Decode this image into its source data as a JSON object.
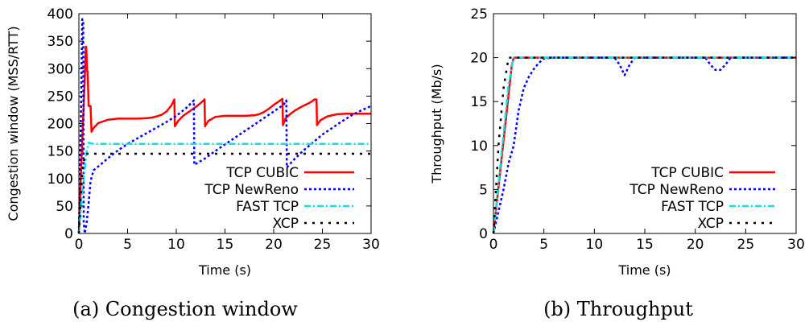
{
  "colors": {
    "cubic": "#ff0000",
    "newreno": "#0000ff",
    "fast": "#00e5ee",
    "xcp": "#000000"
  },
  "chart_data": [
    {
      "type": "line",
      "caption": "(a) Congestion window",
      "xlabel": "Time (s)",
      "ylabel": "Congestion window (MSS/RTT)",
      "xlim": [
        0,
        30
      ],
      "ylim": [
        0,
        400
      ],
      "xticks": [
        0,
        5,
        10,
        15,
        20,
        25,
        30
      ],
      "yticks": [
        0,
        50,
        100,
        150,
        200,
        250,
        300,
        350,
        400
      ],
      "legend_position": "right",
      "series": [
        {
          "name": "TCP CUBIC",
          "color_key": "cubic",
          "dash": "solid",
          "x": [
            0,
            0.3,
            0.6,
            0.7,
            0.75,
            0.85,
            0.9,
            1.0,
            1.1,
            1.2,
            1.3,
            1.5,
            2,
            3,
            4,
            5,
            6,
            7,
            7.5,
            8,
            8.5,
            9,
            9.5,
            9.8,
            9.85,
            10.2,
            10.7,
            11.5,
            12.2,
            12.6,
            12.9,
            12.95,
            13.3,
            14,
            15,
            16,
            17,
            18,
            18.5,
            19,
            19.5,
            20,
            20.5,
            20.9,
            20.95,
            21.2,
            21.6,
            22.2,
            23,
            23.7,
            24.2,
            24.4,
            24.45,
            24.8,
            25.5,
            26.5,
            27.5,
            28.5,
            30
          ],
          "y": [
            0,
            150,
            280,
            340,
            340,
            295,
            295,
            232,
            232,
            232,
            185,
            192,
            201,
            207,
            209,
            209,
            209,
            210,
            211,
            213,
            216,
            222,
            233,
            244,
            195,
            205,
            214,
            224,
            233,
            239,
            244,
            195,
            205,
            212,
            214,
            214,
            214,
            215,
            217,
            221,
            227,
            234,
            240,
            245,
            197,
            209,
            216,
            224,
            232,
            238,
            244,
            244,
            197,
            206,
            213,
            217,
            218,
            218,
            218
          ]
        },
        {
          "name": "TCP NewReno",
          "color_key": "newreno",
          "dash": "dotted",
          "x": [
            0,
            0.2,
            0.35,
            0.45,
            0.5,
            0.6,
            0.8,
            1.0,
            1.2,
            1.5,
            2,
            3,
            4,
            5,
            6,
            7,
            8,
            9,
            10,
            11,
            11.8,
            11.85,
            13,
            14,
            15,
            16,
            17,
            18,
            19,
            20,
            21,
            21.3,
            21.35,
            22,
            23,
            24,
            25,
            26,
            27,
            28,
            29,
            30
          ],
          "y": [
            0,
            200,
            390,
            385,
            20,
            0,
            20,
            55,
            95,
            115,
            122,
            137,
            151,
            163,
            173,
            183,
            193,
            203,
            214,
            228,
            242,
            125,
            137,
            150,
            162,
            174,
            186,
            198,
            210,
            222,
            234,
            242,
            120,
            133,
            150,
            165,
            180,
            192,
            204,
            215,
            224,
            232
          ]
        },
        {
          "name": "FAST TCP",
          "color_key": "fast",
          "dash": "dashdot",
          "x": [
            0,
            0.4,
            0.8,
            1.0,
            1.5,
            30
          ],
          "y": [
            0,
            80,
            150,
            165,
            163,
            163
          ]
        },
        {
          "name": "XCP",
          "color_key": "xcp",
          "dash": "sparse",
          "x": [
            0,
            0.3,
            0.5,
            0.7,
            1.0,
            30
          ],
          "y": [
            0,
            100,
            130,
            145,
            145,
            145
          ]
        }
      ]
    },
    {
      "type": "line",
      "caption": "(b) Throughput",
      "xlabel": "Time (s)",
      "ylabel": "Throughput (Mb/s)",
      "xlim": [
        0,
        30
      ],
      "ylim": [
        0,
        25
      ],
      "xticks": [
        0,
        5,
        10,
        15,
        20,
        25,
        30
      ],
      "yticks": [
        0,
        5,
        10,
        15,
        20,
        25
      ],
      "legend_position": "right",
      "series": [
        {
          "name": "TCP CUBIC",
          "color_key": "cubic",
          "dash": "solid",
          "x": [
            0,
            1.8,
            2.0,
            30
          ],
          "y": [
            0,
            19,
            20,
            20
          ]
        },
        {
          "name": "TCP NewReno",
          "color_key": "newreno",
          "dash": "dotted",
          "x": [
            0,
            1.0,
            1.5,
            2.0,
            2.5,
            3.0,
            3.5,
            4.0,
            4.5,
            5.0,
            6,
            12,
            12.5,
            13,
            13.5,
            14,
            21,
            21.5,
            22,
            22.5,
            23,
            23.5,
            30
          ],
          "y": [
            0,
            5,
            8,
            10,
            14,
            16.5,
            17.8,
            18.7,
            19.4,
            19.9,
            20,
            20,
            19.2,
            18,
            19.2,
            20,
            20,
            19.2,
            18.6,
            18.6,
            19.2,
            20,
            20
          ]
        },
        {
          "name": "FAST TCP",
          "color_key": "fast",
          "dash": "dashdot",
          "x": [
            0,
            1.5,
            2.0,
            30
          ],
          "y": [
            0,
            17,
            20,
            20
          ]
        },
        {
          "name": "XCP",
          "color_key": "xcp",
          "dash": "sparse",
          "x": [
            0,
            0.5,
            1.0,
            1.5,
            30
          ],
          "y": [
            0,
            10,
            16.5,
            20,
            20
          ]
        }
      ]
    }
  ]
}
